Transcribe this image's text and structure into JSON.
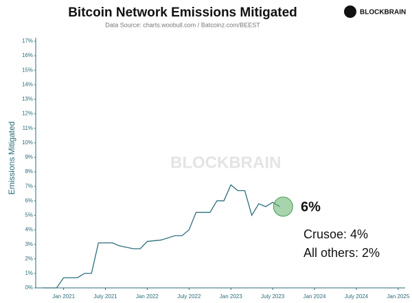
{
  "chart_data": {
    "type": "line",
    "title": "Bitcoin Network Emissions Mitigated",
    "subtitle": "Data Source: charts.woobull.com / Batcoinz.com/BEEST",
    "brand": "BLOCKBRAIN",
    "watermark": "BLOCKBRAIN",
    "y_label": "Emissions Mitigated",
    "annotations": [
      "6%",
      "Crusoe: 4%",
      "All others: 2%"
    ],
    "x": [
      "2020-10",
      "2020-12",
      "2021-01",
      "2021-03",
      "2021-04",
      "2021-05",
      "2021-06",
      "2021-08",
      "2021-09",
      "2021-11",
      "2021-12",
      "2022-01",
      "2022-03",
      "2022-05",
      "2022-06",
      "2022-07",
      "2022-08",
      "2022-10",
      "2022-11",
      "2022-12",
      "2023-01",
      "2023-02",
      "2023-03",
      "2023-04",
      "2023-05",
      "2023-06",
      "2023-07",
      "2023-08"
    ],
    "series": [
      {
        "name": "Emissions Mitigated",
        "color": "#2b6e7e",
        "values": [
          0,
          0,
          0.7,
          0.7,
          1.0,
          1.0,
          3.1,
          3.1,
          2.9,
          2.7,
          2.7,
          3.2,
          3.3,
          3.6,
          3.6,
          4.0,
          5.2,
          5.2,
          6.0,
          6.0,
          7.1,
          6.7,
          6.7,
          5.0,
          5.8,
          5.6,
          5.9,
          5.6
        ]
      }
    ],
    "xlim": [
      "2020-09",
      "2025-02"
    ],
    "xticks": [
      {
        "value": "2021-01",
        "label": "Jan 2021"
      },
      {
        "value": "2021-07",
        "label": "July 2021"
      },
      {
        "value": "2022-01",
        "label": "Jan 2022"
      },
      {
        "value": "2022-07",
        "label": "July 2022"
      },
      {
        "value": "2023-01",
        "label": "Jan 2023"
      },
      {
        "value": "2023-07",
        "label": "July 2023"
      },
      {
        "value": "2024-01",
        "label": "Jan 2024"
      },
      {
        "value": "2024-07",
        "label": "July 2024"
      },
      {
        "value": "2025-01",
        "label": "Jan 2025"
      }
    ],
    "ylim": [
      0,
      17
    ],
    "yticks": [
      {
        "value": 0,
        "label": "0%"
      },
      {
        "value": 1,
        "label": "1%"
      },
      {
        "value": 2,
        "label": "2%"
      },
      {
        "value": 3,
        "label": "3%"
      },
      {
        "value": 4,
        "label": "4%"
      },
      {
        "value": 5,
        "label": "5%"
      },
      {
        "value": 6,
        "label": "6%"
      },
      {
        "value": 7,
        "label": "7%"
      },
      {
        "value": 8,
        "label": "8%"
      },
      {
        "value": 9,
        "label": "9%"
      },
      {
        "value": 10,
        "label": "10%"
      },
      {
        "value": 11,
        "label": "11%"
      },
      {
        "value": 12,
        "label": "12%"
      },
      {
        "value": 13,
        "label": "13%"
      },
      {
        "value": 14,
        "label": "14%"
      },
      {
        "value": 15,
        "label": "15%"
      },
      {
        "value": 16,
        "label": "16%"
      },
      {
        "value": 17,
        "label": "17%"
      }
    ]
  }
}
